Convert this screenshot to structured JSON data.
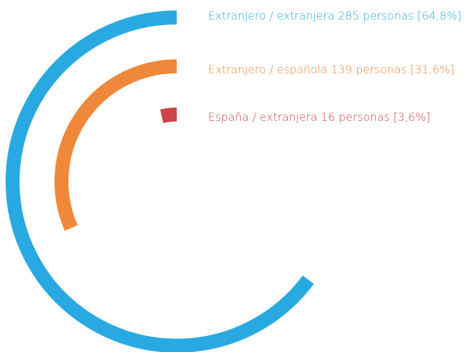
{
  "chart_data": {
    "type": "radial-bar",
    "categories": [
      "Extranjero / extranjera",
      "Extranjero / española",
      "España / extranjera"
    ],
    "counts": [
      285,
      139,
      16
    ],
    "values": [
      64.8,
      31.6,
      3.6
    ],
    "value_labels": [
      "285 personas [64,8%]",
      "139 personas [31,6%]",
      "16 personas [3,6%]"
    ],
    "colors": [
      "#29a9e1",
      "#f0883b",
      "#cc4648"
    ]
  }
}
